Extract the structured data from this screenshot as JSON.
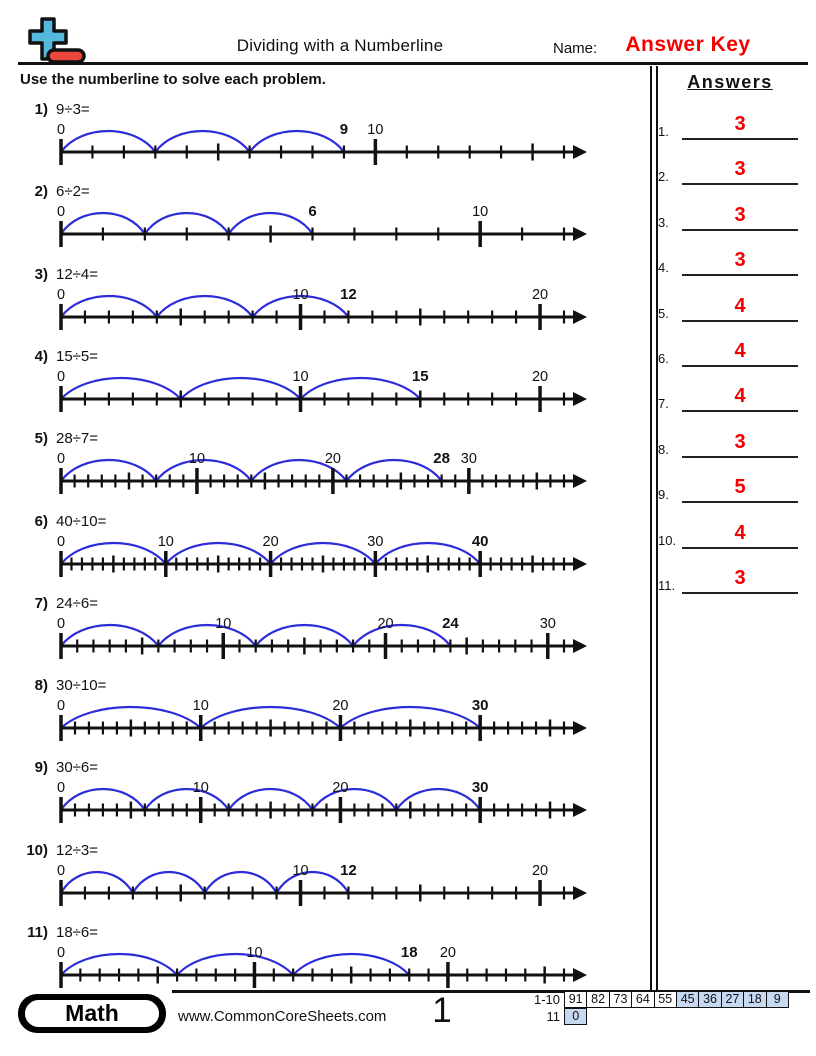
{
  "header": {
    "title": "Dividing with a Numberline",
    "name_label": "Name:",
    "name_value": "Answer Key",
    "instructions": "Use the numberline to solve each problem."
  },
  "colors": {
    "accent_red": "#f40000",
    "arc_blue": "#2c2cd9",
    "logo_blue": "#55b8dd",
    "logo_red": "#e8463e",
    "score_shade": "#c6d9f1",
    "ink": "#111111"
  },
  "answers": {
    "header": "Answers",
    "items": [
      {
        "n": "1.",
        "value": "3"
      },
      {
        "n": "2.",
        "value": "3"
      },
      {
        "n": "3.",
        "value": "3"
      },
      {
        "n": "4.",
        "value": "3"
      },
      {
        "n": "5.",
        "value": "4"
      },
      {
        "n": "6.",
        "value": "4"
      },
      {
        "n": "7.",
        "value": "4"
      },
      {
        "n": "8.",
        "value": "3"
      },
      {
        "n": "9.",
        "value": "5"
      },
      {
        "n": "10.",
        "value": "4"
      },
      {
        "n": "11.",
        "value": "3"
      }
    ]
  },
  "problems": [
    {
      "n": "1)",
      "expression": "9÷3=",
      "dividend": 9,
      "divisor": 3,
      "quotient": 3,
      "line_max": 16,
      "labels": [
        {
          "v": 0
        },
        {
          "v": 9,
          "bold": true
        },
        {
          "v": 10
        }
      ]
    },
    {
      "n": "2)",
      "expression": "6÷2=",
      "dividend": 6,
      "divisor": 2,
      "quotient": 3,
      "line_max": 12,
      "labels": [
        {
          "v": 0
        },
        {
          "v": 6,
          "bold": true
        },
        {
          "v": 10
        }
      ]
    },
    {
      "n": "3)",
      "expression": "12÷4=",
      "dividend": 12,
      "divisor": 4,
      "quotient": 3,
      "line_max": 21,
      "labels": [
        {
          "v": 0
        },
        {
          "v": 10
        },
        {
          "v": 12,
          "bold": true
        },
        {
          "v": 20
        }
      ]
    },
    {
      "n": "4)",
      "expression": "15÷5=",
      "dividend": 15,
      "divisor": 5,
      "quotient": 3,
      "line_max": 21,
      "labels": [
        {
          "v": 0
        },
        {
          "v": 10
        },
        {
          "v": 15,
          "bold": true
        },
        {
          "v": 20
        }
      ]
    },
    {
      "n": "5)",
      "expression": "28÷7=",
      "dividend": 28,
      "divisor": 7,
      "quotient": 4,
      "line_max": 37,
      "labels": [
        {
          "v": 0
        },
        {
          "v": 10
        },
        {
          "v": 20
        },
        {
          "v": 28,
          "bold": true
        },
        {
          "v": 30
        }
      ]
    },
    {
      "n": "6)",
      "expression": "40÷10=",
      "dividend": 40,
      "divisor": 10,
      "quotient": 4,
      "line_max": 48,
      "labels": [
        {
          "v": 0
        },
        {
          "v": 10
        },
        {
          "v": 20
        },
        {
          "v": 30
        },
        {
          "v": 40,
          "bold": true
        }
      ]
    },
    {
      "n": "7)",
      "expression": "24÷6=",
      "dividend": 24,
      "divisor": 6,
      "quotient": 4,
      "line_max": 31,
      "labels": [
        {
          "v": 0
        },
        {
          "v": 10
        },
        {
          "v": 20
        },
        {
          "v": 24,
          "bold": true
        },
        {
          "v": 30
        }
      ]
    },
    {
      "n": "8)",
      "expression": "30÷10=",
      "dividend": 30,
      "divisor": 10,
      "quotient": 3,
      "line_max": 36,
      "labels": [
        {
          "v": 0
        },
        {
          "v": 10
        },
        {
          "v": 20
        },
        {
          "v": 30,
          "bold": true
        }
      ]
    },
    {
      "n": "9)",
      "expression": "30÷6=",
      "dividend": 30,
      "divisor": 6,
      "quotient": 5,
      "line_max": 36,
      "labels": [
        {
          "v": 0
        },
        {
          "v": 10
        },
        {
          "v": 20
        },
        {
          "v": 30,
          "bold": true
        }
      ]
    },
    {
      "n": "10)",
      "expression": "12÷3=",
      "dividend": 12,
      "divisor": 3,
      "quotient": 4,
      "line_max": 21,
      "labels": [
        {
          "v": 0
        },
        {
          "v": 10
        },
        {
          "v": 12,
          "bold": true
        },
        {
          "v": 20
        }
      ]
    },
    {
      "n": "11)",
      "expression": "18÷6=",
      "dividend": 18,
      "divisor": 6,
      "quotient": 3,
      "line_max": 26,
      "labels": [
        {
          "v": 0
        },
        {
          "v": 10
        },
        {
          "v": 18,
          "bold": true
        },
        {
          "v": 20
        }
      ]
    }
  ],
  "footer": {
    "subject": "Math",
    "website": "www.CommonCoreSheets.com",
    "page_number": "1",
    "score_rows": [
      {
        "label": "1-10",
        "cells": [
          {
            "v": "91",
            "shaded": false
          },
          {
            "v": "82",
            "shaded": false
          },
          {
            "v": "73",
            "shaded": false
          },
          {
            "v": "64",
            "shaded": false
          },
          {
            "v": "55",
            "shaded": false
          },
          {
            "v": "45",
            "shaded": true
          },
          {
            "v": "36",
            "shaded": true
          },
          {
            "v": "27",
            "shaded": true
          },
          {
            "v": "18",
            "shaded": true
          },
          {
            "v": "9",
            "shaded": true
          }
        ]
      },
      {
        "label": "11",
        "cells": [
          {
            "v": "0",
            "shaded": true
          }
        ]
      }
    ]
  }
}
